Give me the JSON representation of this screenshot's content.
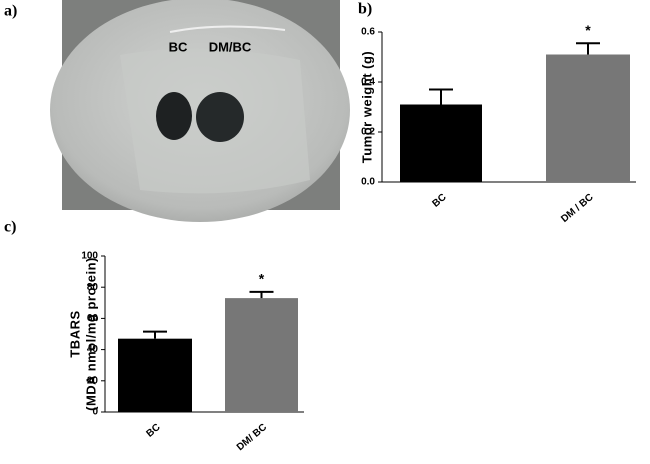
{
  "photo": {
    "panel": "a)",
    "labels": [
      "BC",
      "DM/BC"
    ]
  },
  "chart_data": [
    {
      "type": "bar",
      "panel": "b)",
      "ylabel": [
        "Tumor weight (g)"
      ],
      "categories": [
        "BC",
        "DM / BC"
      ],
      "values": [
        0.31,
        0.51
      ],
      "errors": [
        0.06,
        0.045
      ],
      "colors": [
        "#000000",
        "#777777"
      ],
      "annotation": "*",
      "ylim": [
        0,
        0.6
      ],
      "yticks": [
        {
          "value": 0,
          "label": "0.0"
        },
        0.2,
        0.4,
        0.6
      ]
    },
    {
      "type": "bar",
      "panel": "c)",
      "ylabel": [
        "TBARS",
        "(MDA nmol/mg protein)"
      ],
      "categories": [
        "BC",
        "DM/ BC"
      ],
      "values": [
        47,
        73
      ],
      "errors": [
        4.5,
        4
      ],
      "colors": [
        "#000000",
        "#777777"
      ],
      "annotation": "*",
      "ylim": [
        0,
        100
      ],
      "yticks": [
        0,
        20,
        40,
        60,
        80,
        100
      ]
    }
  ]
}
